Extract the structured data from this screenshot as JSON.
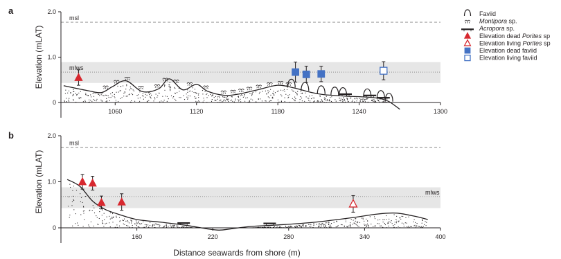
{
  "chart_data": [
    {
      "type": "scatter",
      "panel_label": "a",
      "ylabel": "Elevation (mLAT)",
      "xlabel": "",
      "xlim": [
        1020,
        1300
      ],
      "ylim": [
        -0.15,
        2.0
      ],
      "xticks": [
        1060,
        1120,
        1180,
        1240,
        1300
      ],
      "yticks": [
        0,
        1.0,
        2.0
      ],
      "ytick_labels": [
        "0",
        "1.0",
        "2.0"
      ],
      "reference_lines": [
        {
          "label": "msl",
          "y": 1.77,
          "style": "dashed",
          "label_side": "left"
        },
        {
          "label": "mlws",
          "y": 0.67,
          "style": "dotted",
          "label_side": "left"
        }
      ],
      "shaded_band": [
        0.43,
        0.89
      ],
      "profile": {
        "x": [
          1022,
          1040,
          1050,
          1058,
          1068,
          1080,
          1092,
          1100,
          1110,
          1120,
          1128,
          1140,
          1150,
          1165,
          1180,
          1192,
          1205,
          1215,
          1230,
          1245,
          1255,
          1262,
          1270
        ],
        "y": [
          0.37,
          0.26,
          0.22,
          0.35,
          0.48,
          0.24,
          0.3,
          0.52,
          0.28,
          0.4,
          0.25,
          0.16,
          0.18,
          0.28,
          0.38,
          0.32,
          0.22,
          0.17,
          0.14,
          0.12,
          0.09,
          0.02,
          -0.15
        ]
      },
      "series": [
        {
          "name": "Elevation dead Porites sp",
          "marker": "triangle-filled",
          "color": "#d7282f",
          "points": [
            {
              "x": 1033,
              "y": 0.55,
              "err": 0.17
            }
          ]
        },
        {
          "name": "Elevation dead faviid",
          "marker": "square-filled",
          "color": "#4472c4",
          "points": [
            {
              "x": 1193,
              "y": 0.67,
              "err": 0.22
            },
            {
              "x": 1201,
              "y": 0.62,
              "err": 0.18
            },
            {
              "x": 1212,
              "y": 0.63,
              "err": 0.17
            }
          ]
        },
        {
          "name": "Elevation living faviid",
          "marker": "square-open",
          "color": "#4472c4",
          "points": [
            {
              "x": 1258,
              "y": 0.7,
              "err": 0.2
            }
          ]
        }
      ],
      "coral_symbols": [
        {
          "kind": "montipora",
          "x": [
            1053,
            1061,
            1069,
            1079,
            1091,
            1097,
            1105,
            1115,
            1127,
            1140,
            1147,
            1153,
            1159,
            1166,
            1174,
            1182,
            1188
          ]
        },
        {
          "kind": "faviid",
          "x": [
            1190,
            1200,
            1212,
            1222,
            1228,
            1246,
            1256,
            1262
          ]
        },
        {
          "kind": "acropora",
          "x": [
            1230,
            1248,
            1258
          ]
        }
      ]
    },
    {
      "type": "scatter",
      "panel_label": "b",
      "ylabel": "Elevation (mLAT)",
      "xlabel": "Distance seawards from shore (m)",
      "xlim": [
        100,
        400
      ],
      "ylim": [
        -0.15,
        2.0
      ],
      "xticks": [
        160,
        220,
        280,
        340,
        400
      ],
      "yticks": [
        0,
        1.0,
        2.0
      ],
      "ytick_labels": [
        "0",
        "1.0",
        "2.0"
      ],
      "reference_lines": [
        {
          "label": "msl",
          "y": 1.75,
          "style": "dashed",
          "label_side": "left"
        },
        {
          "label": "mlws",
          "y": 0.68,
          "style": "dotted",
          "label_side": "right"
        }
      ],
      "shaded_band": [
        0.43,
        0.88
      ],
      "profile": {
        "x": [
          105,
          115,
          125,
          135,
          145,
          160,
          180,
          200,
          215,
          225,
          235,
          250,
          270,
          300,
          330,
          350,
          365,
          380,
          390
        ],
        "y": [
          1.05,
          0.9,
          0.58,
          0.4,
          0.3,
          0.18,
          0.12,
          0.05,
          -0.02,
          -0.05,
          -0.02,
          0.03,
          0.06,
          0.12,
          0.22,
          0.3,
          0.32,
          0.25,
          0.18
        ]
      },
      "series": [
        {
          "name": "Elevation dead Porites sp",
          "marker": "triangle-filled",
          "color": "#d7282f",
          "points": [
            {
              "x": 117,
              "y": 1.0,
              "err": 0.16
            },
            {
              "x": 125,
              "y": 0.97,
              "err": 0.15
            },
            {
              "x": 132,
              "y": 0.55,
              "err": 0.14
            },
            {
              "x": 148,
              "y": 0.56,
              "err": 0.18
            }
          ]
        },
        {
          "name": "Elevation living Porites sp",
          "marker": "triangle-open",
          "color": "#d7282f",
          "points": [
            {
              "x": 331,
              "y": 0.52,
              "err": 0.18
            }
          ]
        }
      ],
      "coral_symbols": [
        {
          "kind": "acropora",
          "x": [
            197,
            265
          ]
        }
      ]
    }
  ],
  "legend": {
    "placement": "top-right",
    "items": [
      {
        "symbol": "faviid",
        "text": "Faviid",
        "italic_part": ""
      },
      {
        "symbol": "montipora",
        "text": "",
        "italic_part": "Montipora",
        "suffix": " sp."
      },
      {
        "symbol": "acropora",
        "text": "",
        "italic_part": "Acropora",
        "suffix": " sp."
      },
      {
        "symbol": "triangle-filled",
        "text": "Elevation dead ",
        "italic_part": "Porites",
        "suffix": " sp"
      },
      {
        "symbol": "triangle-open",
        "text": "Elevation living ",
        "italic_part": "Porites",
        "suffix": " sp"
      },
      {
        "symbol": "square-filled",
        "text": "Elevation dead faviid",
        "italic_part": ""
      },
      {
        "symbol": "square-open",
        "text": "Elevation living faviid",
        "italic_part": ""
      }
    ]
  },
  "colors": {
    "ink": "#231f20",
    "band": "#e6e6e6",
    "red": "#d7282f",
    "blue": "#4472c4",
    "ref_line": "#8a8a8a"
  }
}
